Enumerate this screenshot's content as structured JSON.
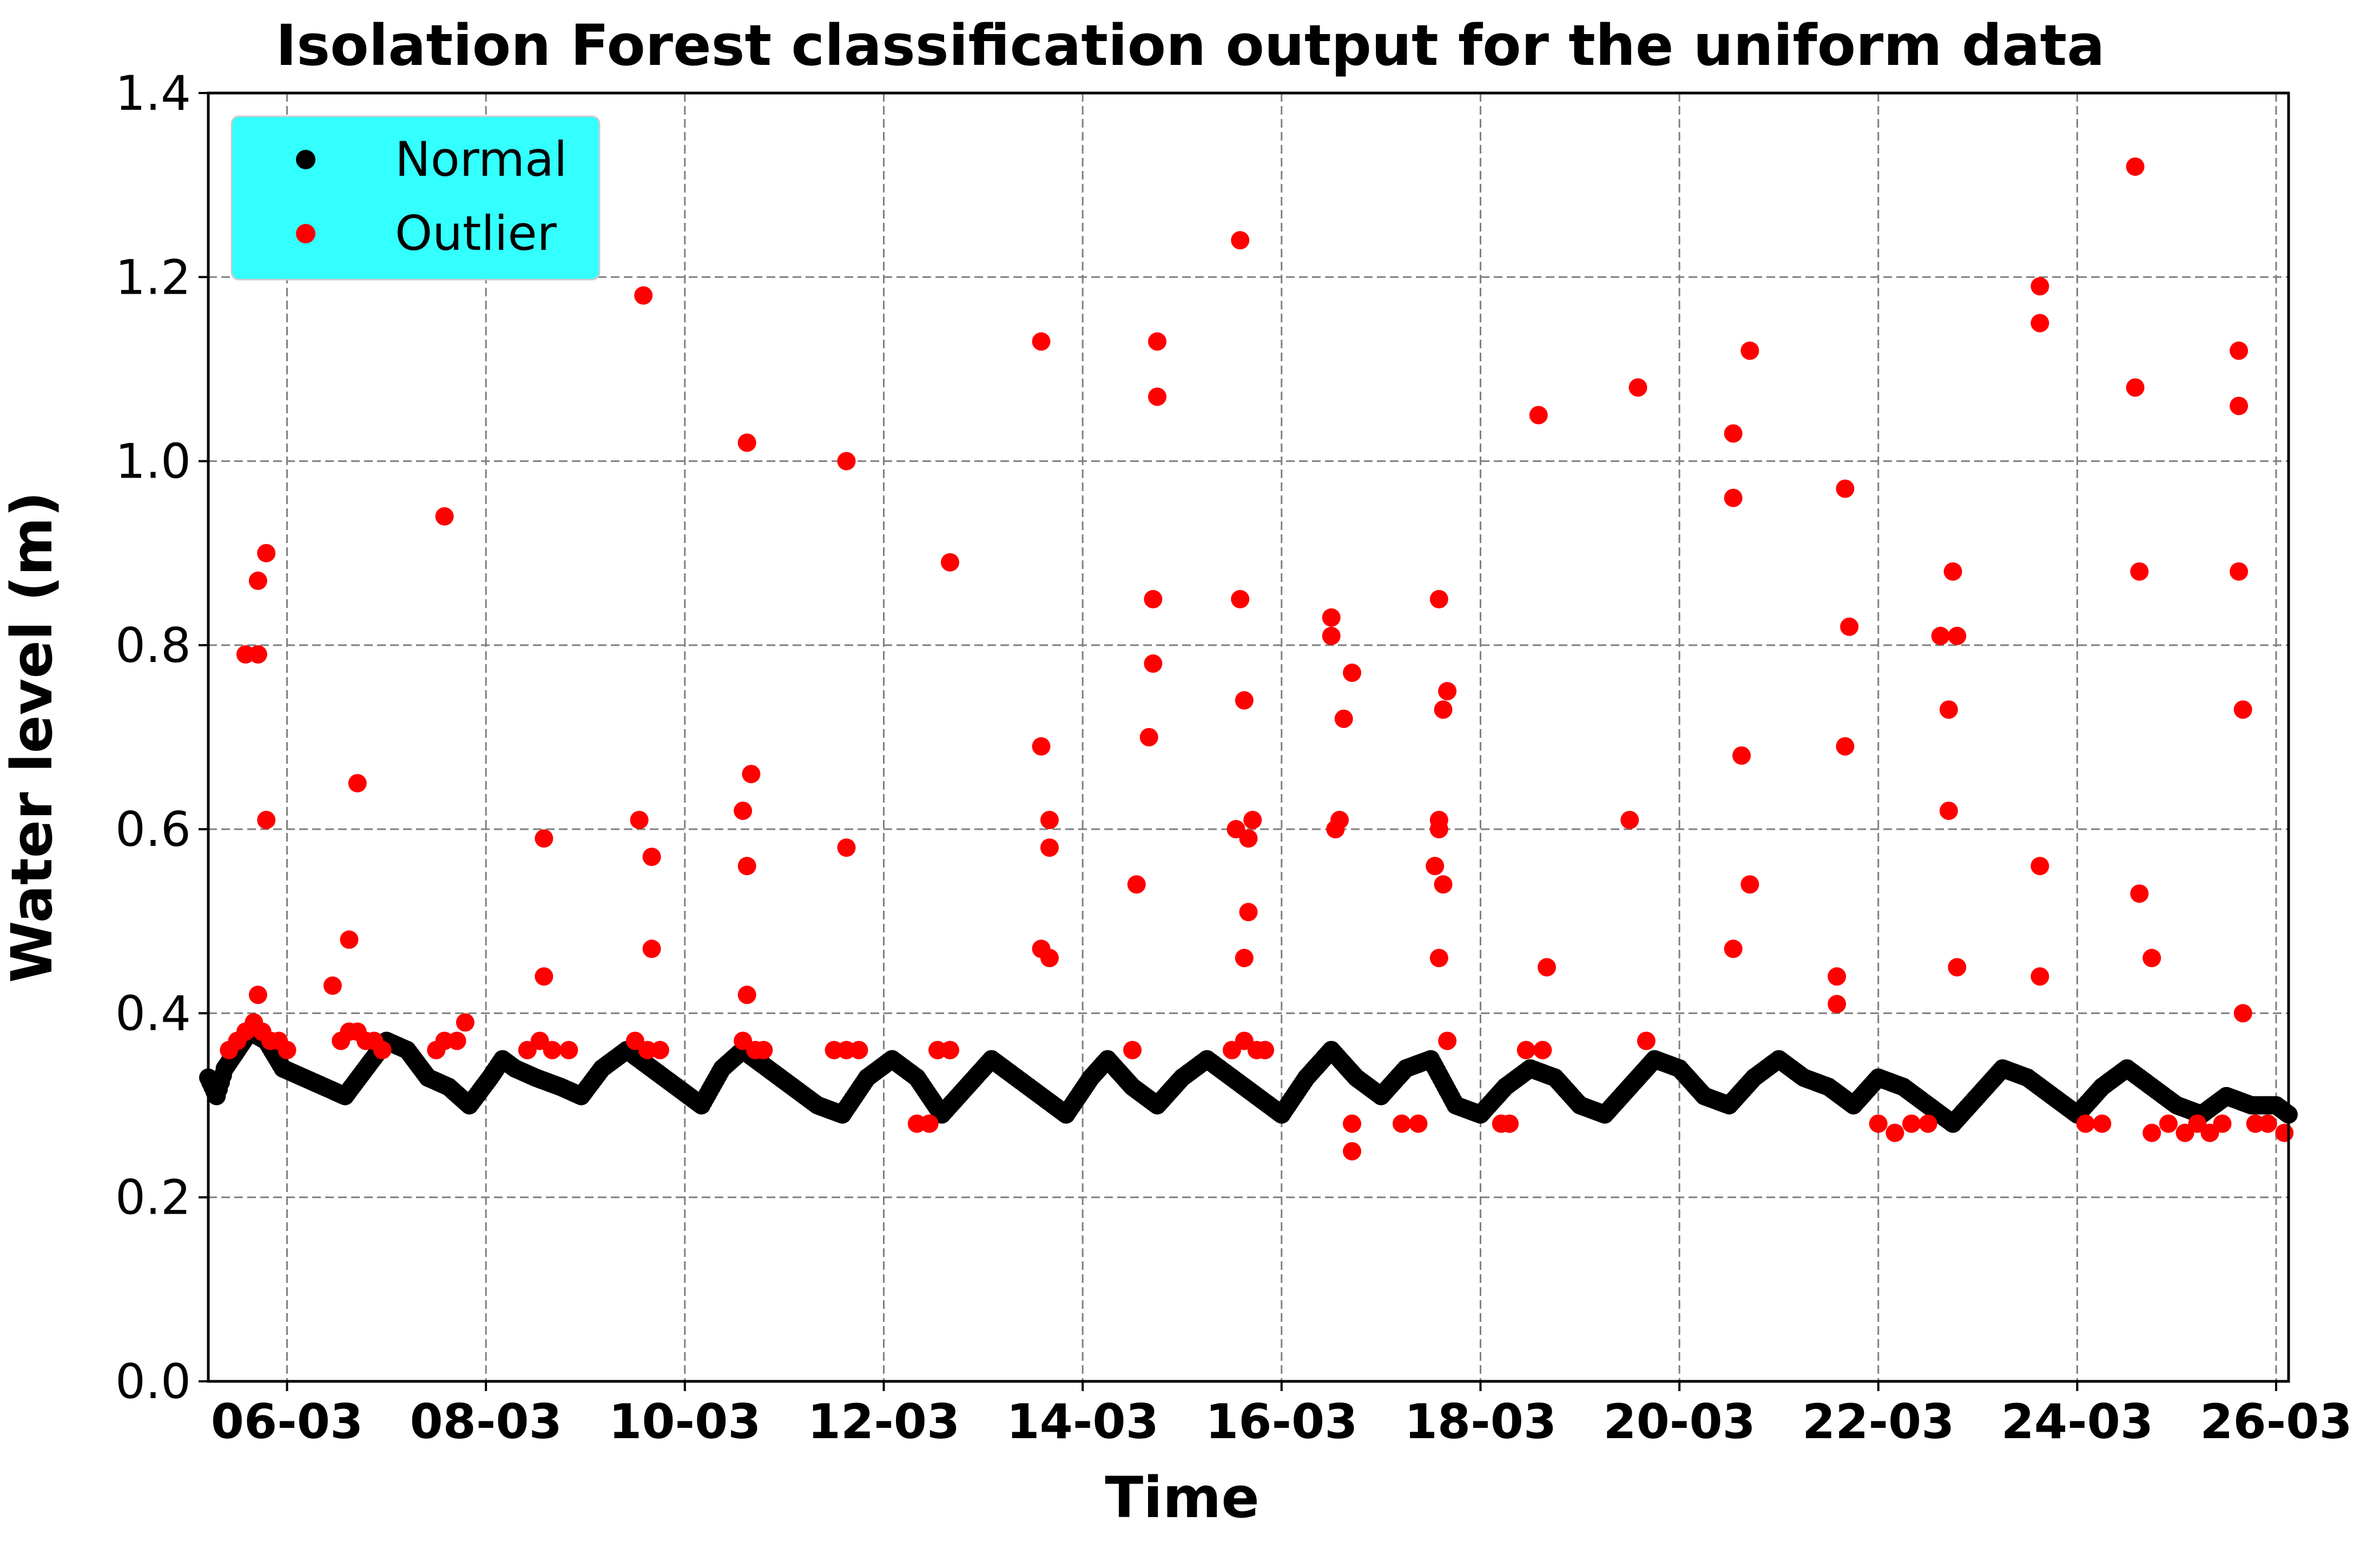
{
  "chart_data": {
    "type": "scatter",
    "title": "Isolation Forest classification output for the uniform data",
    "xlabel": "Time",
    "ylabel": "Water level (m)",
    "ylim": [
      0.0,
      1.4
    ],
    "yticks": [
      0.0,
      0.2,
      0.4,
      0.6,
      0.8,
      1.0,
      1.2,
      1.4
    ],
    "ytick_labels": [
      "0.0",
      "0.2",
      "0.4",
      "0.6",
      "0.8",
      "1.0",
      "1.2",
      "1.4"
    ],
    "xlim": [
      "2019-03-05T05:00",
      "2019-03-26T03:00"
    ],
    "xticks": [
      "2019-03-06",
      "2019-03-08",
      "2019-03-10",
      "2019-03-12",
      "2019-03-14",
      "2019-03-16",
      "2019-03-18",
      "2019-03-20",
      "2019-03-22",
      "2019-03-24",
      "2019-03-26"
    ],
    "xtick_labels": [
      "06-03",
      "08-03",
      "10-03",
      "12-03",
      "14-03",
      "16-03",
      "18-03",
      "20-03",
      "22-03",
      "24-03",
      "26-03"
    ],
    "grid": true,
    "legend": {
      "position": "top-left",
      "background": "#33ffff",
      "entries": [
        {
          "label": "Normal",
          "color": "#000000"
        },
        {
          "label": "Outlier",
          "color": "#ff0000"
        }
      ]
    },
    "normal_trace": [
      [
        "2019-03-05T05:00",
        0.33
      ],
      [
        "2019-03-05T07:00",
        0.31
      ],
      [
        "2019-03-05T09:00",
        0.34
      ],
      [
        "2019-03-05T12:00",
        0.36
      ],
      [
        "2019-03-05T15:00",
        0.38
      ],
      [
        "2019-03-05T19:00",
        0.37
      ],
      [
        "2019-03-05T23:00",
        0.34
      ],
      [
        "2019-03-06T04:00",
        0.33
      ],
      [
        "2019-03-06T09:00",
        0.32
      ],
      [
        "2019-03-06T14:00",
        0.31
      ],
      [
        "2019-03-06T19:00",
        0.34
      ],
      [
        "2019-03-07T00:00",
        0.37
      ],
      [
        "2019-03-07T05:00",
        0.36
      ],
      [
        "2019-03-07T10:00",
        0.33
      ],
      [
        "2019-03-07T15:00",
        0.32
      ],
      [
        "2019-03-07T20:00",
        0.3
      ],
      [
        "2019-03-08T01:00",
        0.33
      ],
      [
        "2019-03-08T04:00",
        0.35
      ],
      [
        "2019-03-08T07:00",
        0.34
      ],
      [
        "2019-03-08T12:00",
        0.33
      ],
      [
        "2019-03-08T18:00",
        0.32
      ],
      [
        "2019-03-08T23:00",
        0.31
      ],
      [
        "2019-03-09T04:00",
        0.34
      ],
      [
        "2019-03-09T10:00",
        0.36
      ],
      [
        "2019-03-09T16:00",
        0.34
      ],
      [
        "2019-03-09T22:00",
        0.32
      ],
      [
        "2019-03-10T04:00",
        0.3
      ],
      [
        "2019-03-10T09:00",
        0.34
      ],
      [
        "2019-03-10T14:00",
        0.36
      ],
      [
        "2019-03-10T20:00",
        0.34
      ],
      [
        "2019-03-11T02:00",
        0.32
      ],
      [
        "2019-03-11T08:00",
        0.3
      ],
      [
        "2019-03-11T14:00",
        0.29
      ],
      [
        "2019-03-11T20:00",
        0.33
      ],
      [
        "2019-03-12T02:00",
        0.35
      ],
      [
        "2019-03-12T08:00",
        0.33
      ],
      [
        "2019-03-12T14:00",
        0.29
      ],
      [
        "2019-03-12T20:00",
        0.32
      ],
      [
        "2019-03-13T02:00",
        0.35
      ],
      [
        "2019-03-13T08:00",
        0.33
      ],
      [
        "2019-03-13T14:00",
        0.31
      ],
      [
        "2019-03-13T20:00",
        0.29
      ],
      [
        "2019-03-14T02:00",
        0.33
      ],
      [
        "2019-03-14T06:00",
        0.35
      ],
      [
        "2019-03-14T12:00",
        0.32
      ],
      [
        "2019-03-14T18:00",
        0.3
      ],
      [
        "2019-03-15T00:00",
        0.33
      ],
      [
        "2019-03-15T06:00",
        0.35
      ],
      [
        "2019-03-15T12:00",
        0.33
      ],
      [
        "2019-03-15T18:00",
        0.31
      ],
      [
        "2019-03-16T00:00",
        0.29
      ],
      [
        "2019-03-16T06:00",
        0.33
      ],
      [
        "2019-03-16T12:00",
        0.36
      ],
      [
        "2019-03-16T18:00",
        0.33
      ],
      [
        "2019-03-17T00:00",
        0.31
      ],
      [
        "2019-03-17T06:00",
        0.34
      ],
      [
        "2019-03-17T12:00",
        0.35
      ],
      [
        "2019-03-17T18:00",
        0.3
      ],
      [
        "2019-03-18T00:00",
        0.29
      ],
      [
        "2019-03-18T06:00",
        0.32
      ],
      [
        "2019-03-18T12:00",
        0.34
      ],
      [
        "2019-03-18T18:00",
        0.33
      ],
      [
        "2019-03-19T00:00",
        0.3
      ],
      [
        "2019-03-19T06:00",
        0.29
      ],
      [
        "2019-03-19T12:00",
        0.32
      ],
      [
        "2019-03-19T18:00",
        0.35
      ],
      [
        "2019-03-20T00:00",
        0.34
      ],
      [
        "2019-03-20T06:00",
        0.31
      ],
      [
        "2019-03-20T12:00",
        0.3
      ],
      [
        "2019-03-20T18:00",
        0.33
      ],
      [
        "2019-03-21T00:00",
        0.35
      ],
      [
        "2019-03-21T06:00",
        0.33
      ],
      [
        "2019-03-21T12:00",
        0.32
      ],
      [
        "2019-03-21T18:00",
        0.3
      ],
      [
        "2019-03-22T00:00",
        0.33
      ],
      [
        "2019-03-22T06:00",
        0.32
      ],
      [
        "2019-03-22T12:00",
        0.3
      ],
      [
        "2019-03-22T18:00",
        0.28
      ],
      [
        "2019-03-23T00:00",
        0.31
      ],
      [
        "2019-03-23T06:00",
        0.34
      ],
      [
        "2019-03-23T12:00",
        0.33
      ],
      [
        "2019-03-23T18:00",
        0.31
      ],
      [
        "2019-03-24T00:00",
        0.29
      ],
      [
        "2019-03-24T06:00",
        0.32
      ],
      [
        "2019-03-24T12:00",
        0.34
      ],
      [
        "2019-03-24T18:00",
        0.32
      ],
      [
        "2019-03-25T00:00",
        0.3
      ],
      [
        "2019-03-25T06:00",
        0.29
      ],
      [
        "2019-03-25T12:00",
        0.31
      ],
      [
        "2019-03-25T18:00",
        0.3
      ],
      [
        "2019-03-26T00:00",
        0.3
      ],
      [
        "2019-03-26T03:00",
        0.29
      ]
    ],
    "outliers": [
      [
        "2019-03-05T14:00",
        0.79
      ],
      [
        "2019-03-05T17:00",
        0.79
      ],
      [
        "2019-03-05T17:00",
        0.87
      ],
      [
        "2019-03-05T19:00",
        0.9
      ],
      [
        "2019-03-05T19:00",
        0.61
      ],
      [
        "2019-03-05T17:00",
        0.42
      ],
      [
        "2019-03-05T10:00",
        0.36
      ],
      [
        "2019-03-05T12:00",
        0.37
      ],
      [
        "2019-03-05T14:00",
        0.38
      ],
      [
        "2019-03-05T16:00",
        0.39
      ],
      [
        "2019-03-05T18:00",
        0.38
      ],
      [
        "2019-03-05T20:00",
        0.37
      ],
      [
        "2019-03-05T22:00",
        0.37
      ],
      [
        "2019-03-06T00:00",
        0.36
      ],
      [
        "2019-03-06T11:00",
        0.43
      ],
      [
        "2019-03-06T13:00",
        0.37
      ],
      [
        "2019-03-06T15:00",
        0.38
      ],
      [
        "2019-03-06T17:00",
        0.38
      ],
      [
        "2019-03-06T19:00",
        0.37
      ],
      [
        "2019-03-06T21:00",
        0.37
      ],
      [
        "2019-03-06T23:00",
        0.36
      ],
      [
        "2019-03-06T15:00",
        0.48
      ],
      [
        "2019-03-06T17:00",
        0.65
      ],
      [
        "2019-03-07T14:00",
        0.94
      ],
      [
        "2019-03-07T12:00",
        0.36
      ],
      [
        "2019-03-07T14:00",
        0.37
      ],
      [
        "2019-03-07T17:00",
        0.37
      ],
      [
        "2019-03-07T19:00",
        0.39
      ],
      [
        "2019-03-08T14:00",
        0.59
      ],
      [
        "2019-03-08T14:00",
        0.44
      ],
      [
        "2019-03-08T10:00",
        0.36
      ],
      [
        "2019-03-08T13:00",
        0.37
      ],
      [
        "2019-03-08T16:00",
        0.36
      ],
      [
        "2019-03-08T20:00",
        0.36
      ],
      [
        "2019-03-09T14:00",
        1.18
      ],
      [
        "2019-03-09T13:00",
        0.61
      ],
      [
        "2019-03-09T16:00",
        0.57
      ],
      [
        "2019-03-09T16:00",
        0.47
      ],
      [
        "2019-03-09T12:00",
        0.37
      ],
      [
        "2019-03-09T15:00",
        0.36
      ],
      [
        "2019-03-09T18:00",
        0.36
      ],
      [
        "2019-03-10T15:00",
        1.02
      ],
      [
        "2019-03-10T16:00",
        0.66
      ],
      [
        "2019-03-10T14:00",
        0.62
      ],
      [
        "2019-03-10T15:00",
        0.56
      ],
      [
        "2019-03-10T15:00",
        0.42
      ],
      [
        "2019-03-10T14:00",
        0.37
      ],
      [
        "2019-03-10T17:00",
        0.36
      ],
      [
        "2019-03-10T19:00",
        0.36
      ],
      [
        "2019-03-11T15:00",
        1.0
      ],
      [
        "2019-03-11T15:00",
        0.58
      ],
      [
        "2019-03-11T12:00",
        0.36
      ],
      [
        "2019-03-11T15:00",
        0.36
      ],
      [
        "2019-03-11T18:00",
        0.36
      ],
      [
        "2019-03-12T08:00",
        0.28
      ],
      [
        "2019-03-12T11:00",
        0.28
      ],
      [
        "2019-03-12T16:00",
        0.89
      ],
      [
        "2019-03-12T13:00",
        0.36
      ],
      [
        "2019-03-12T16:00",
        0.36
      ],
      [
        "2019-03-13T14:00",
        1.13
      ],
      [
        "2019-03-13T14:00",
        0.69
      ],
      [
        "2019-03-13T16:00",
        0.61
      ],
      [
        "2019-03-13T16:00",
        0.58
      ],
      [
        "2019-03-13T14:00",
        0.47
      ],
      [
        "2019-03-13T16:00",
        0.46
      ],
      [
        "2019-03-14T18:00",
        1.13
      ],
      [
        "2019-03-14T18:00",
        1.07
      ],
      [
        "2019-03-14T17:00",
        0.85
      ],
      [
        "2019-03-14T17:00",
        0.78
      ],
      [
        "2019-03-14T16:00",
        0.7
      ],
      [
        "2019-03-14T13:00",
        0.54
      ],
      [
        "2019-03-14T12:00",
        0.36
      ],
      [
        "2019-03-15T14:00",
        1.24
      ],
      [
        "2019-03-15T14:00",
        0.85
      ],
      [
        "2019-03-15T15:00",
        0.74
      ],
      [
        "2019-03-15T13:00",
        0.6
      ],
      [
        "2019-03-15T17:00",
        0.61
      ],
      [
        "2019-03-15T16:00",
        0.59
      ],
      [
        "2019-03-15T16:00",
        0.51
      ],
      [
        "2019-03-15T15:00",
        0.46
      ],
      [
        "2019-03-15T12:00",
        0.36
      ],
      [
        "2019-03-15T15:00",
        0.37
      ],
      [
        "2019-03-15T18:00",
        0.36
      ],
      [
        "2019-03-15T20:00",
        0.36
      ],
      [
        "2019-03-16T12:00",
        0.83
      ],
      [
        "2019-03-16T12:00",
        0.81
      ],
      [
        "2019-03-16T17:00",
        0.77
      ],
      [
        "2019-03-16T15:00",
        0.72
      ],
      [
        "2019-03-16T14:00",
        0.61
      ],
      [
        "2019-03-16T13:00",
        0.6
      ],
      [
        "2019-03-16T17:00",
        0.28
      ],
      [
        "2019-03-16T17:00",
        0.25
      ],
      [
        "2019-03-17T05:00",
        0.28
      ],
      [
        "2019-03-17T09:00",
        0.28
      ],
      [
        "2019-03-17T14:00",
        0.85
      ],
      [
        "2019-03-17T16:00",
        0.75
      ],
      [
        "2019-03-17T15:00",
        0.73
      ],
      [
        "2019-03-17T14:00",
        0.61
      ],
      [
        "2019-03-17T14:00",
        0.6
      ],
      [
        "2019-03-17T13:00",
        0.56
      ],
      [
        "2019-03-17T15:00",
        0.54
      ],
      [
        "2019-03-17T14:00",
        0.46
      ],
      [
        "2019-03-17T16:00",
        0.37
      ],
      [
        "2019-03-18T05:00",
        0.28
      ],
      [
        "2019-03-18T07:00",
        0.28
      ],
      [
        "2019-03-18T11:00",
        0.36
      ],
      [
        "2019-03-18T15:00",
        0.36
      ],
      [
        "2019-03-18T14:00",
        1.05
      ],
      [
        "2019-03-18T16:00",
        0.45
      ],
      [
        "2019-03-19T12:00",
        0.61
      ],
      [
        "2019-03-19T14:00",
        1.08
      ],
      [
        "2019-03-19T16:00",
        0.37
      ],
      [
        "2019-03-20T13:00",
        1.03
      ],
      [
        "2019-03-20T13:00",
        0.96
      ],
      [
        "2019-03-20T17:00",
        1.12
      ],
      [
        "2019-03-20T15:00",
        0.68
      ],
      [
        "2019-03-20T17:00",
        0.54
      ],
      [
        "2019-03-20T13:00",
        0.47
      ],
      [
        "2019-03-21T16:00",
        0.97
      ],
      [
        "2019-03-21T17:00",
        0.82
      ],
      [
        "2019-03-21T16:00",
        0.69
      ],
      [
        "2019-03-21T14:00",
        0.44
      ],
      [
        "2019-03-21T14:00",
        0.41
      ],
      [
        "2019-03-22T00:00",
        0.28
      ],
      [
        "2019-03-22T04:00",
        0.27
      ],
      [
        "2019-03-22T08:00",
        0.28
      ],
      [
        "2019-03-22T12:00",
        0.28
      ],
      [
        "2019-03-22T15:00",
        0.81
      ],
      [
        "2019-03-22T19:00",
        0.81
      ],
      [
        "2019-03-22T18:00",
        0.88
      ],
      [
        "2019-03-22T17:00",
        0.73
      ],
      [
        "2019-03-22T17:00",
        0.62
      ],
      [
        "2019-03-22T19:00",
        0.45
      ],
      [
        "2019-03-23T15:00",
        1.19
      ],
      [
        "2019-03-23T15:00",
        1.15
      ],
      [
        "2019-03-23T15:00",
        0.56
      ],
      [
        "2019-03-23T15:00",
        0.44
      ],
      [
        "2019-03-24T02:00",
        0.28
      ],
      [
        "2019-03-24T06:00",
        0.28
      ],
      [
        "2019-03-24T14:00",
        1.32
      ],
      [
        "2019-03-24T14:00",
        1.08
      ],
      [
        "2019-03-24T15:00",
        0.88
      ],
      [
        "2019-03-24T15:00",
        0.53
      ],
      [
        "2019-03-24T18:00",
        0.46
      ],
      [
        "2019-03-24T18:00",
        0.27
      ],
      [
        "2019-03-24T22:00",
        0.28
      ],
      [
        "2019-03-25T02:00",
        0.27
      ],
      [
        "2019-03-25T05:00",
        0.28
      ],
      [
        "2019-03-25T08:00",
        0.27
      ],
      [
        "2019-03-25T11:00",
        0.28
      ],
      [
        "2019-03-25T15:00",
        1.12
      ],
      [
        "2019-03-25T15:00",
        1.06
      ],
      [
        "2019-03-25T15:00",
        0.88
      ],
      [
        "2019-03-25T16:00",
        0.73
      ],
      [
        "2019-03-25T16:00",
        0.4
      ],
      [
        "2019-03-25T19:00",
        0.28
      ],
      [
        "2019-03-25T22:00",
        0.28
      ],
      [
        "2019-03-26T02:00",
        0.27
      ]
    ]
  }
}
